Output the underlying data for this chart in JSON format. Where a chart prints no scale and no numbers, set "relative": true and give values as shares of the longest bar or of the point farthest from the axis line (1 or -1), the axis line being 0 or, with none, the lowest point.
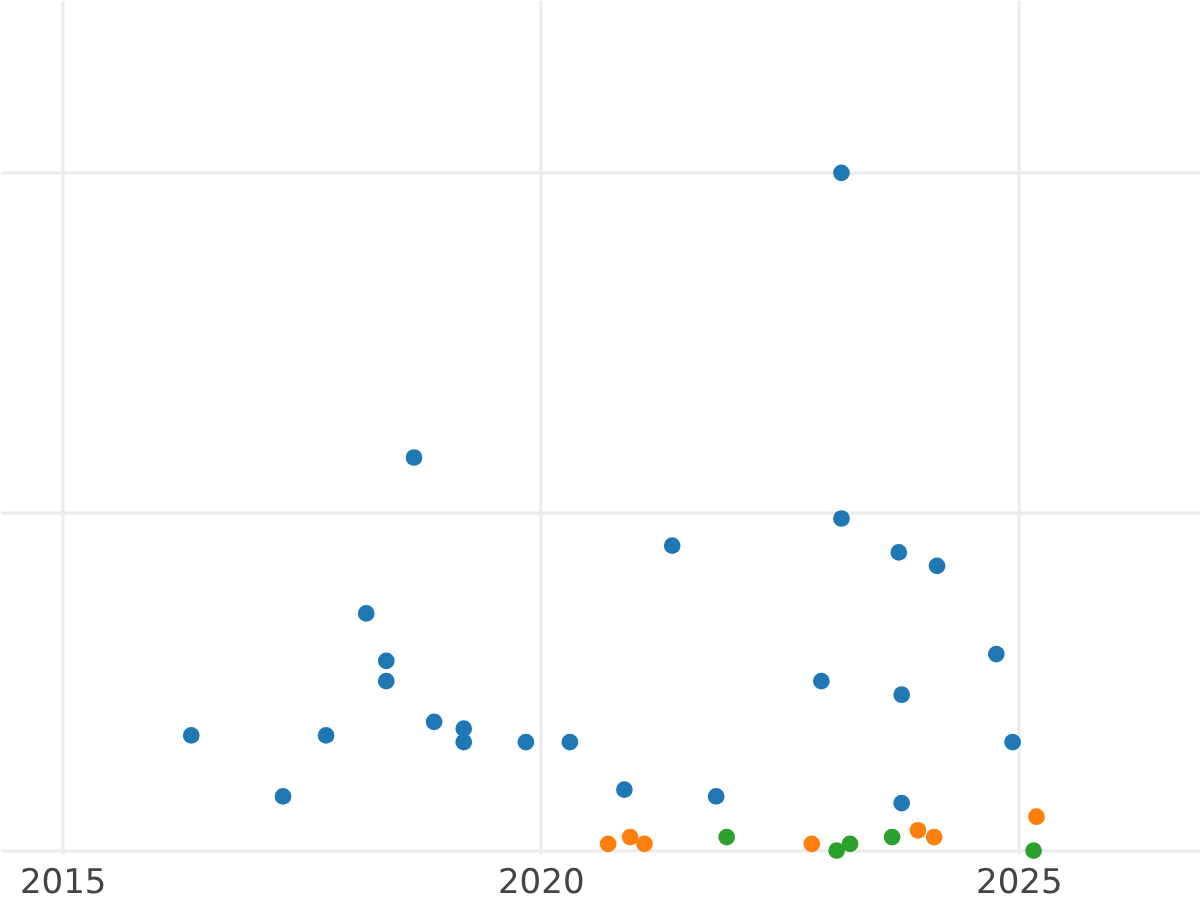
{
  "chart_data": {
    "type": "scatter",
    "relative": true,
    "xlim": [
      2014.35,
      2026.9
    ],
    "xticks": [
      2015,
      2020,
      2025
    ],
    "grid": true,
    "tick_labels": "x",
    "marker": "circle",
    "series": [
      {
        "color": "#1f77b4",
        "x": [
          2016.35,
          2017.31,
          2017.76,
          2018.18,
          2018.39,
          2018.39,
          2018.68,
          2018.89,
          2019.2,
          2019.2,
          2019.85,
          2020.31,
          2020.88,
          2021.38,
          2021.84,
          2022.94,
          2023.15,
          2023.15,
          2023.75,
          2023.78,
          2023.78,
          2024.15,
          2024.77,
          2024.94
        ],
        "values": [
          0.17,
          0.08,
          0.17,
          0.35,
          0.28,
          0.25,
          0.58,
          0.19,
          0.18,
          0.16,
          0.16,
          0.16,
          0.09,
          0.45,
          0.08,
          0.25,
          1.0,
          0.49,
          0.44,
          0.23,
          0.07,
          0.42,
          0.29,
          0.16
        ]
      },
      {
        "color": "#ff7f0e",
        "x": [
          2020.71,
          2020.94,
          2021.09,
          2022.84,
          2023.95,
          2024.12,
          2025.19
        ],
        "values": [
          0.01,
          0.02,
          0.01,
          0.01,
          0.03,
          0.02,
          0.05
        ]
      },
      {
        "color": "#2ca02c",
        "x": [
          2021.95,
          2023.1,
          2023.24,
          2023.68,
          2025.16
        ],
        "values": [
          0.02,
          0.0,
          0.01,
          0.02,
          0.0
        ]
      }
    ]
  }
}
